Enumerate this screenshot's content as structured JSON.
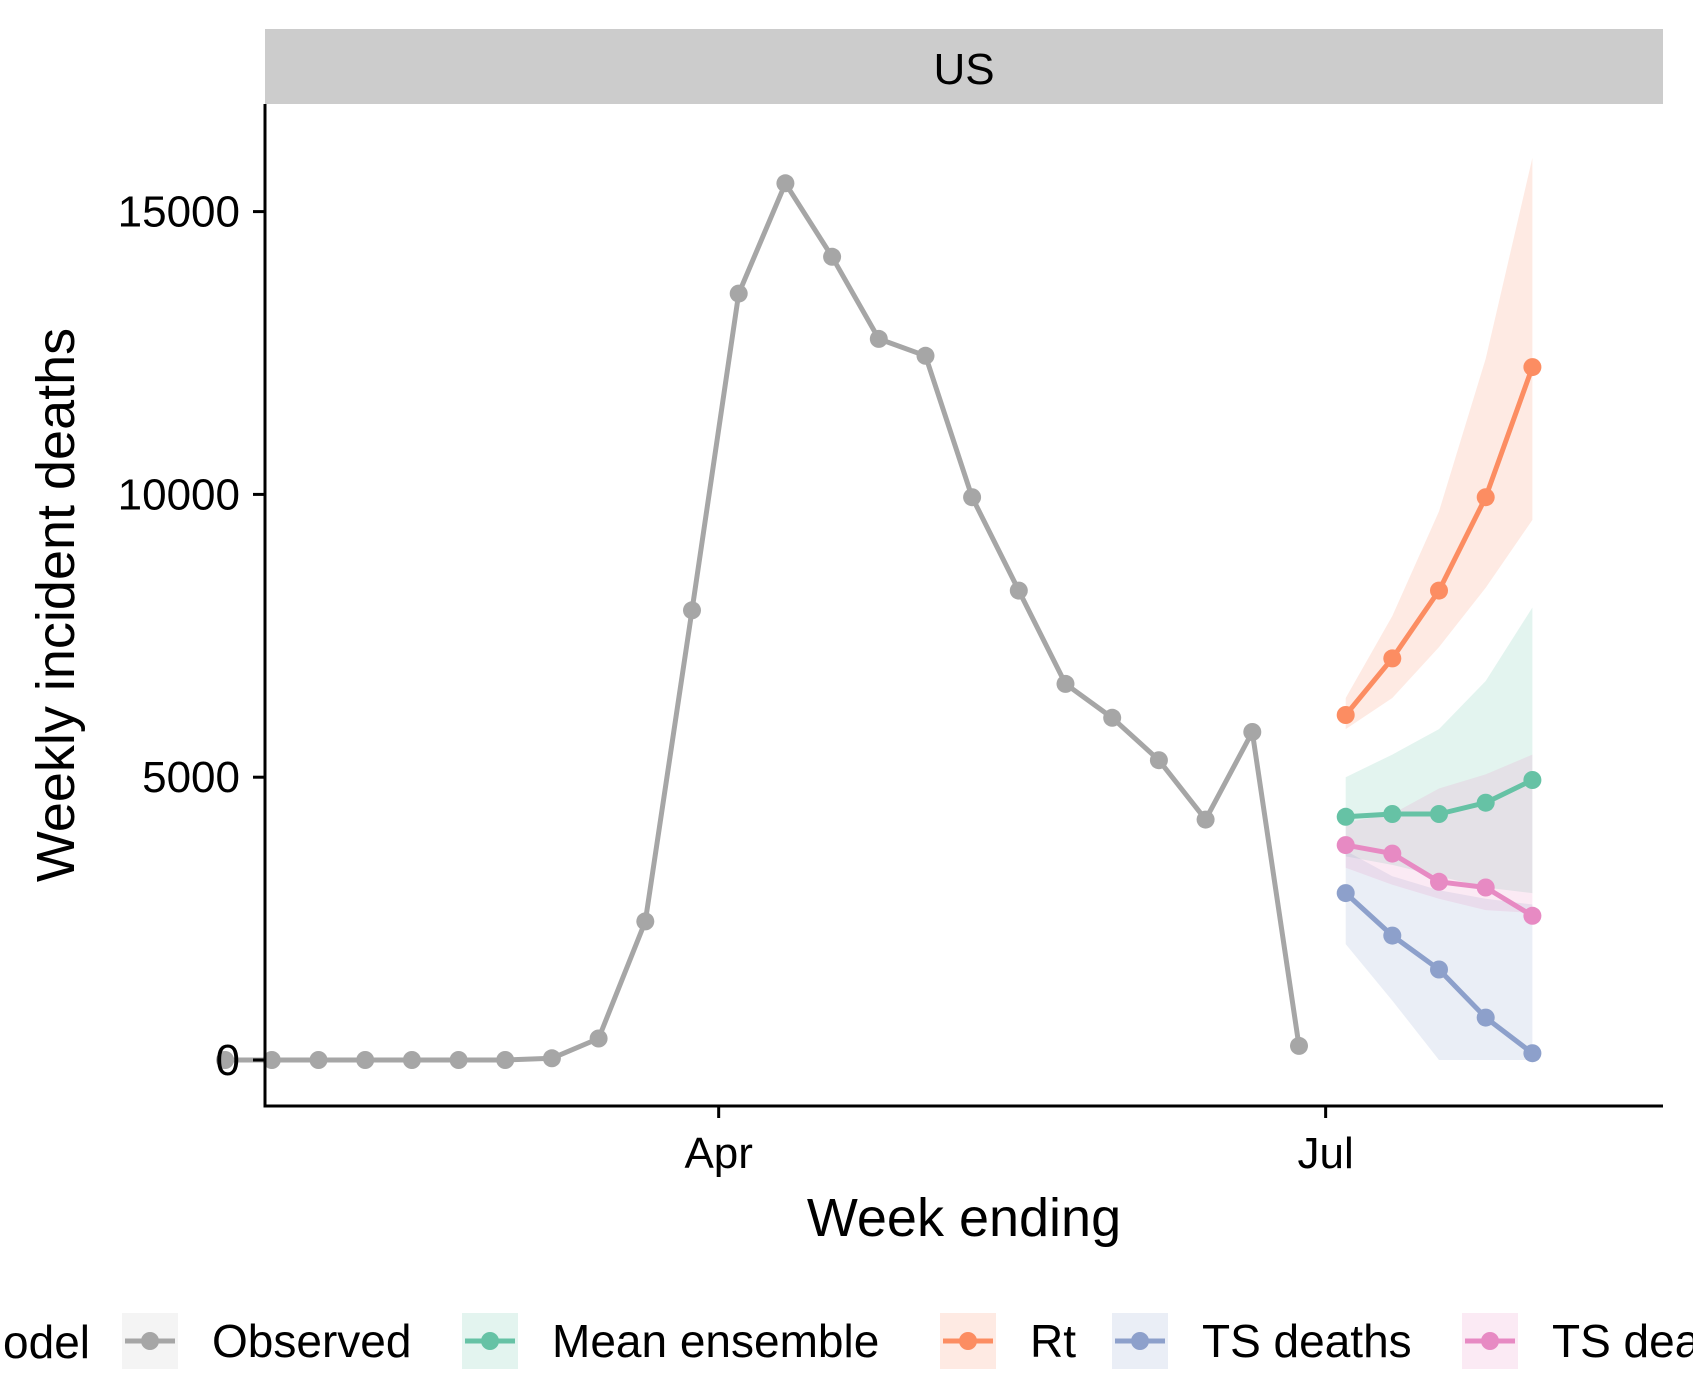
{
  "chart_data": {
    "type": "line",
    "facet": "US",
    "xlabel": "Week ending",
    "ylabel": "Weekly incident deaths",
    "x_ticks": [
      {
        "date": "2020-04-01",
        "label": "Apr"
      },
      {
        "date": "2020-07-01",
        "label": "Jul"
      }
    ],
    "y_ticks": [
      0,
      5000,
      10000,
      15000
    ],
    "grid": false,
    "legend": {
      "title": "Model",
      "title_visible": "odel",
      "position": "bottom"
    },
    "series": [
      {
        "name": "Observed",
        "color": "#A6A6A6",
        "x": [
          "2020-01-18",
          "2020-01-25",
          "2020-02-01",
          "2020-02-08",
          "2020-02-15",
          "2020-02-22",
          "2020-02-29",
          "2020-03-07",
          "2020-03-14",
          "2020-03-21",
          "2020-03-28",
          "2020-04-04",
          "2020-04-11",
          "2020-04-18",
          "2020-04-25",
          "2020-05-02",
          "2020-05-09",
          "2020-05-16",
          "2020-05-23",
          "2020-05-30",
          "2020-06-06",
          "2020-06-13",
          "2020-06-20",
          "2020-06-27",
          "2020-06-28"
        ],
        "y": [
          0,
          0,
          0,
          0,
          0,
          0,
          0,
          30,
          380,
          2450,
          7950,
          13550,
          15500,
          14200,
          12750,
          12450,
          9950,
          8300,
          6650,
          6050,
          5300,
          4250,
          5800,
          250,
          null
        ],
        "y_note_hidden": ""
      },
      {
        "name": "Mean ensemble",
        "color": "#66C2A5",
        "x": [
          "2020-07-04",
          "2020-07-11",
          "2020-07-18",
          "2020-07-25",
          "2020-08-01"
        ],
        "y": [
          4300,
          4350,
          4350,
          4550,
          4950
        ],
        "lower": [
          3600,
          3450,
          3250,
          3050,
          2950
        ],
        "upper": [
          5000,
          5400,
          5850,
          6700,
          8000
        ]
      },
      {
        "name": "Rt",
        "color": "#FC8D62",
        "x": [
          "2020-07-04",
          "2020-07-11",
          "2020-07-18",
          "2020-07-25",
          "2020-08-01"
        ],
        "y": [
          6100,
          7100,
          8300,
          9950,
          12250
        ],
        "lower": [
          5850,
          6400,
          7300,
          8350,
          9550
        ],
        "upper": [
          6400,
          7850,
          9700,
          12400,
          15950
        ]
      },
      {
        "name": "TS deaths",
        "color": "#8DA0CB",
        "x": [
          "2020-07-04",
          "2020-07-11",
          "2020-07-18",
          "2020-07-25",
          "2020-08-01"
        ],
        "y": [
          2950,
          2200,
          1600,
          750,
          120
        ],
        "lower": [
          2050,
          1050,
          0,
          0,
          0
        ],
        "upper": [
          3700,
          3250,
          3000,
          2850,
          2750
        ]
      },
      {
        "name": "TS deaths",
        "legend_visible": "TS dea",
        "color": "#E78AC3",
        "x": [
          "2020-07-04",
          "2020-07-11",
          "2020-07-18",
          "2020-07-25",
          "2020-08-01"
        ],
        "y": [
          3800,
          3650,
          3150,
          3050,
          2550
        ],
        "lower": [
          3400,
          3100,
          2850,
          2650,
          2600
        ],
        "upper": [
          4200,
          4350,
          4800,
          5050,
          5400
        ]
      }
    ]
  }
}
